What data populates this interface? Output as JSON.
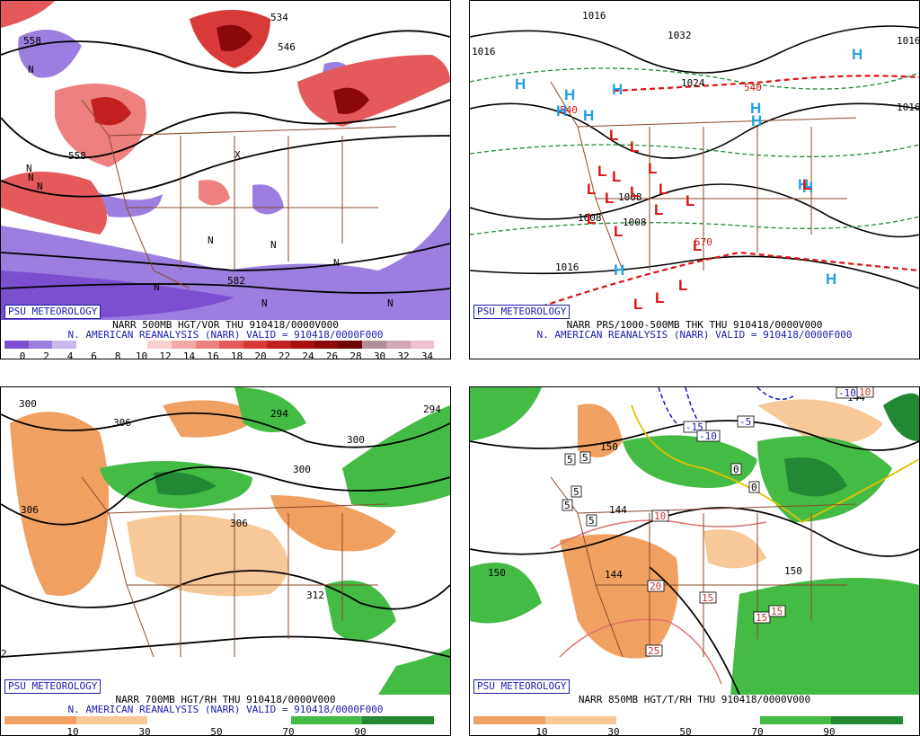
{
  "panels": [
    {
      "credit": "PSU METEOROLOGY",
      "title1": "NARR 500MB HGT/VOR THU 910418/0000V000",
      "title2": "N. AMERICAN REANALYSIS (NARR) VALID = 910418/0000F000",
      "colorbar": {
        "ticks": [
          "0",
          "2",
          "4",
          "6",
          "8",
          "10",
          "12",
          "14",
          "16",
          "18",
          "20",
          "22",
          "24",
          "26",
          "28",
          "30",
          "32",
          "34"
        ],
        "colors": [
          "#7b4fd0",
          "#9c7ee0",
          "#c8b8ee",
          "#ffffff",
          "#ffffff",
          "#ffffff",
          "#f8d0d0",
          "#f4a8a8",
          "#ee8080",
          "#e45a5a",
          "#d83a3a",
          "#c42020",
          "#a81010",
          "#8c0808",
          "#6e0404",
          "#b09098",
          "#d0a8b8",
          "#f0c0d0"
        ]
      },
      "contour_labels": [
        "558",
        "534",
        "546",
        "582",
        "558"
      ],
      "symbols": [
        "N",
        "N",
        "N",
        "N",
        "N",
        "N",
        "N",
        "N",
        "X",
        "N",
        "N"
      ]
    },
    {
      "credit": "PSU METEOROLOGY",
      "title1": "NARR PRS/1000-500MB THK THU 910418/0000V000",
      "title2": "N. AMERICAN REANALYSIS (NARR) VALID = 910418/0000F000",
      "contour_labels": [
        "1016",
        "1016",
        "1032",
        "1024",
        "1016",
        "1008",
        "1008",
        "1008",
        "1016",
        "1016",
        "540",
        "540",
        "570"
      ],
      "highs": [
        "H",
        "H",
        "H",
        "H",
        "H",
        "H",
        "H",
        "H",
        "H",
        "H",
        "H",
        "H"
      ],
      "lows": [
        "L",
        "L",
        "L",
        "L",
        "L",
        "L",
        "L",
        "L",
        "L",
        "L",
        "L",
        "L",
        "L",
        "L",
        "L",
        "L",
        "L",
        "L"
      ]
    },
    {
      "credit": "PSU METEOROLOGY",
      "title1": "NARR 700MB HGT/RH THU 910418/0000V000",
      "title2": "N. AMERICAN REANALYSIS (NARR) VALID = 910418/0000F000",
      "colorbar": {
        "ticks": [
          "10",
          "30",
          "50",
          "70",
          "90"
        ],
        "colors": [
          "#f0a060",
          "#f0a060",
          "#f7c898",
          "#f7c898",
          "#ffffff",
          "#ffffff",
          "#ffffff",
          "#ffffff",
          "#44bb44",
          "#44bb44",
          "#228833",
          "#228833"
        ]
      },
      "contour_labels": [
        "300",
        "306",
        "294",
        "294",
        "300",
        "300",
        "306",
        "306",
        "312",
        "2"
      ]
    },
    {
      "credit": "PSU METEOROLOGY",
      "title1": "NARR 850MB HGT/T/RH THU 910418/0000V000",
      "colorbar": {
        "ticks": [
          "10",
          "30",
          "50",
          "70",
          "90"
        ],
        "colors": [
          "#f0a060",
          "#f0a060",
          "#f7c898",
          "#f7c898",
          "#ffffff",
          "#ffffff",
          "#ffffff",
          "#ffffff",
          "#44bb44",
          "#44bb44",
          "#228833",
          "#228833"
        ]
      },
      "contour_labels": [
        "150",
        "144",
        "150",
        "144",
        "150",
        "144"
      ],
      "temp_labels": [
        "-15",
        "-10",
        "-5",
        "-10",
        "5",
        "5",
        "5",
        "5",
        "5",
        "10",
        "20",
        "15",
        "15",
        "15",
        "25",
        "0",
        "0",
        "10"
      ]
    }
  ]
}
